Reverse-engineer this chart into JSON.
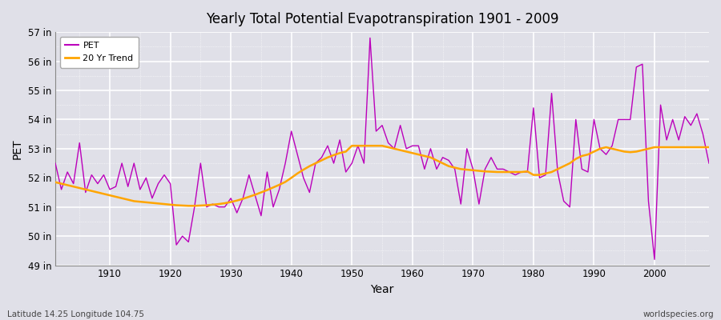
{
  "title": "Yearly Total Potential Evapotranspiration 1901 - 2009",
  "xlabel": "Year",
  "ylabel": "PET",
  "subtitle_left": "Latitude 14.25 Longitude 104.75",
  "subtitle_right": "worldspecies.org",
  "pet_color": "#bb00bb",
  "trend_color": "#ffa500",
  "bg_color": "#e0e0e8",
  "ylim": [
    49,
    57
  ],
  "xlim": [
    1901,
    2009
  ],
  "yticks": [
    49,
    50,
    51,
    52,
    53,
    54,
    55,
    56,
    57
  ],
  "ytick_labels": [
    "49 in",
    "50 in",
    "51 in",
    "52 in",
    "53 in",
    "54 in",
    "55 in",
    "56 in",
    "57 in"
  ],
  "xticks": [
    1910,
    1920,
    1930,
    1940,
    1950,
    1960,
    1970,
    1980,
    1990,
    2000
  ],
  "years": [
    1901,
    1902,
    1903,
    1904,
    1905,
    1906,
    1907,
    1908,
    1909,
    1910,
    1911,
    1912,
    1913,
    1914,
    1915,
    1916,
    1917,
    1918,
    1919,
    1920,
    1921,
    1922,
    1923,
    1924,
    1925,
    1926,
    1927,
    1928,
    1929,
    1930,
    1931,
    1932,
    1933,
    1934,
    1935,
    1936,
    1937,
    1938,
    1939,
    1940,
    1941,
    1942,
    1943,
    1944,
    1945,
    1946,
    1947,
    1948,
    1949,
    1950,
    1951,
    1952,
    1953,
    1954,
    1955,
    1956,
    1957,
    1958,
    1959,
    1960,
    1961,
    1962,
    1963,
    1964,
    1965,
    1966,
    1967,
    1968,
    1969,
    1970,
    1971,
    1972,
    1973,
    1974,
    1975,
    1976,
    1977,
    1978,
    1979,
    1980,
    1981,
    1982,
    1983,
    1984,
    1985,
    1986,
    1987,
    1988,
    1989,
    1990,
    1991,
    1992,
    1993,
    1994,
    1995,
    1996,
    1997,
    1998,
    1999,
    2000,
    2001,
    2002,
    2003,
    2004,
    2005,
    2006,
    2007,
    2008,
    2009
  ],
  "pet": [
    52.5,
    51.6,
    52.2,
    51.8,
    53.2,
    51.5,
    52.1,
    51.8,
    52.1,
    51.6,
    51.7,
    52.5,
    51.7,
    52.5,
    51.6,
    52.0,
    51.3,
    51.8,
    52.1,
    51.8,
    49.7,
    50.0,
    49.8,
    51.0,
    52.5,
    51.0,
    51.1,
    51.0,
    51.0,
    51.3,
    50.8,
    51.3,
    52.1,
    51.4,
    50.7,
    52.2,
    51.0,
    51.6,
    52.5,
    53.6,
    52.8,
    52.0,
    51.5,
    52.5,
    52.7,
    53.1,
    52.5,
    53.3,
    52.2,
    52.5,
    53.1,
    52.5,
    56.8,
    53.6,
    53.8,
    53.2,
    53.0,
    53.8,
    53.0,
    53.1,
    53.1,
    52.3,
    53.0,
    52.3,
    52.7,
    52.6,
    52.3,
    51.1,
    53.0,
    52.3,
    51.1,
    52.3,
    52.7,
    52.3,
    52.3,
    52.2,
    52.1,
    52.2,
    52.2,
    54.4,
    52.0,
    52.1,
    54.9,
    52.2,
    51.2,
    51.0,
    54.0,
    52.3,
    52.2,
    54.0,
    53.0,
    52.8,
    53.1,
    54.0,
    54.0,
    54.0,
    55.8,
    55.9,
    51.2,
    49.2,
    54.5,
    53.3,
    54.0,
    53.3,
    54.1,
    53.8,
    54.2,
    53.5,
    52.5
  ],
  "trend": [
    51.85,
    51.8,
    51.75,
    51.7,
    51.65,
    51.6,
    51.55,
    51.5,
    51.45,
    51.4,
    51.35,
    51.3,
    51.25,
    51.2,
    51.18,
    51.16,
    51.14,
    51.12,
    51.1,
    51.08,
    51.06,
    51.05,
    51.04,
    51.04,
    51.05,
    51.06,
    51.08,
    51.1,
    51.13,
    51.17,
    51.22,
    51.28,
    51.35,
    51.42,
    51.5,
    51.58,
    51.67,
    51.76,
    51.86,
    52.0,
    52.15,
    52.28,
    52.4,
    52.5,
    52.6,
    52.7,
    52.78,
    52.85,
    52.9,
    53.1,
    53.1,
    53.1,
    53.1,
    53.1,
    53.1,
    53.05,
    53.0,
    52.95,
    52.9,
    52.85,
    52.8,
    52.75,
    52.7,
    52.6,
    52.5,
    52.4,
    52.35,
    52.3,
    52.28,
    52.26,
    52.24,
    52.22,
    52.21,
    52.2,
    52.2,
    52.2,
    52.2,
    52.2,
    52.22,
    52.1,
    52.1,
    52.15,
    52.2,
    52.3,
    52.4,
    52.5,
    52.65,
    52.75,
    52.8,
    52.9,
    53.0,
    53.05,
    53.0,
    52.95,
    52.9,
    52.88,
    52.9,
    52.95,
    53.0,
    53.05,
    53.05,
    53.05,
    53.05,
    53.05,
    53.05,
    53.05,
    53.05,
    53.05,
    53.05
  ]
}
